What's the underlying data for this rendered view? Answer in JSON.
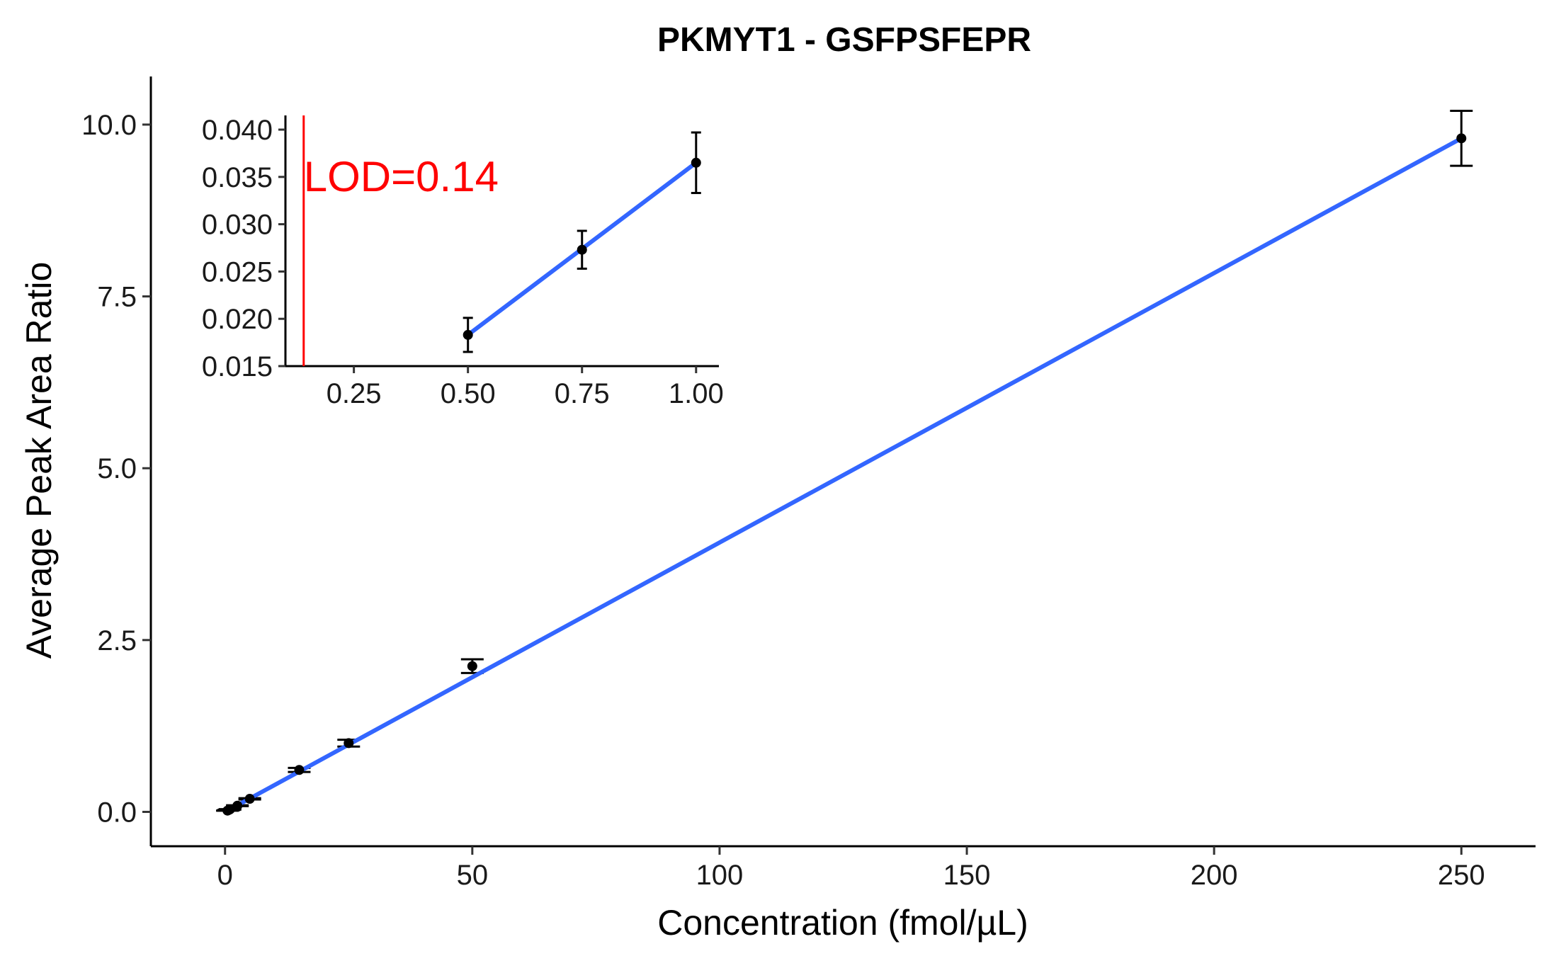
{
  "chart_data": [
    {
      "type": "scatter",
      "title": "PKMYT1 - GSFPSFEPR",
      "xlabel": "Concentration (fmol/µL)",
      "ylabel": "Average Peak Area Ratio",
      "xlim": [
        -15,
        265
      ],
      "ylim": [
        -0.5,
        10.7
      ],
      "x_ticks": [
        0,
        50,
        100,
        150,
        200,
        250
      ],
      "x_tick_labels": [
        "0",
        "50",
        "100",
        "150",
        "200",
        "250"
      ],
      "y_ticks": [
        0,
        2.5,
        5,
        7.5,
        10
      ],
      "y_tick_labels": [
        "0.0",
        "2.5",
        "5.0",
        "7.5",
        "10.0"
      ],
      "points": [
        {
          "x": 0.5,
          "y": 0.018,
          "err": 0.002
        },
        {
          "x": 0.75,
          "y": 0.027,
          "err": 0.002
        },
        {
          "x": 1,
          "y": 0.036,
          "err": 0.004
        },
        {
          "x": 2.5,
          "y": 0.09,
          "err": 0.006
        },
        {
          "x": 5,
          "y": 0.19,
          "err": 0.01
        },
        {
          "x": 15,
          "y": 0.61,
          "err": 0.03
        },
        {
          "x": 25,
          "y": 1.0,
          "err": 0.05
        },
        {
          "x": 50,
          "y": 2.12,
          "err": 0.1
        },
        {
          "x": 250,
          "y": 9.8,
          "err": 0.4
        }
      ],
      "fit_line": {
        "x": [
          0.5,
          250
        ],
        "y": [
          0.018,
          9.8
        ],
        "color": "#3366ff"
      },
      "point_color": "#000000",
      "grid": false
    },
    {
      "type": "scatter",
      "inset": true,
      "xlim": [
        0.1,
        1.05
      ],
      "ylim": [
        0.015,
        0.0415
      ],
      "x_ticks": [
        0.25,
        0.5,
        0.75,
        1.0
      ],
      "x_tick_labels": [
        "0.25",
        "0.50",
        "0.75",
        "1.00"
      ],
      "y_ticks": [
        0.015,
        0.02,
        0.025,
        0.03,
        0.035,
        0.04
      ],
      "y_tick_labels": [
        "0.015",
        "0.020",
        "0.025",
        "0.030",
        "0.035",
        "0.040"
      ],
      "points": [
        {
          "x": 0.5,
          "y": 0.0183,
          "err": 0.0018
        },
        {
          "x": 0.75,
          "y": 0.0273,
          "err": 0.002
        },
        {
          "x": 1.0,
          "y": 0.0365,
          "err": 0.0032
        }
      ],
      "fit_line": {
        "x": [
          0.5,
          1.0
        ],
        "y": [
          0.0183,
          0.0365
        ],
        "color": "#3366ff"
      },
      "lod": {
        "x": 0.14,
        "label": "LOD=0.14",
        "color": "#ff0000"
      },
      "grid": false
    }
  ]
}
